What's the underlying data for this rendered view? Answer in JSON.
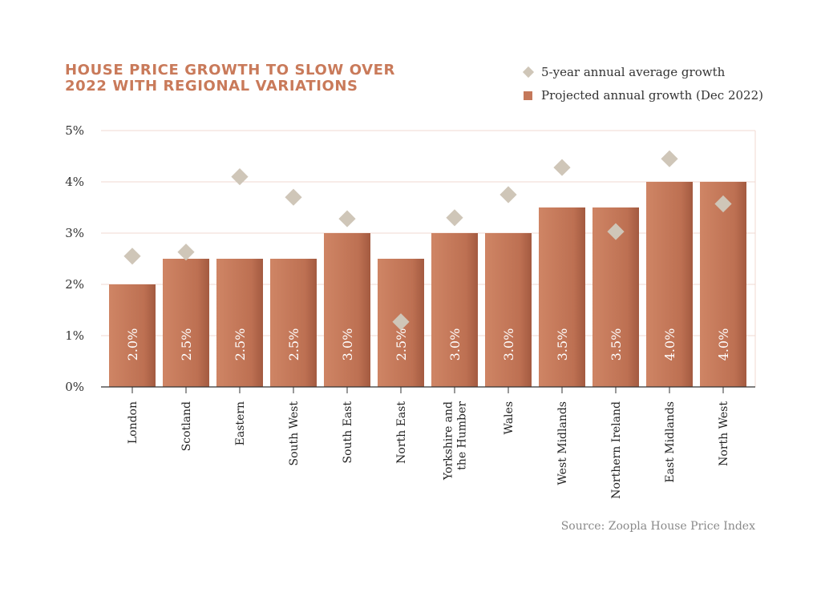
{
  "title_lines": [
    "HOUSE PRICE GROWTH TO SLOW OVER",
    "2022 WITH REGIONAL VARIATIONS"
  ],
  "legend": {
    "average_label": "5-year annual average growth",
    "projected_label": "Projected annual growth (Dec 2022)"
  },
  "source": "Source: Zoopla House Price Index",
  "colors": {
    "bar": "#c4785a",
    "bar_dark": "#a35a40",
    "diamond": "#cfc6b8",
    "title": "#c97a5a",
    "grid": "#f0d8d0"
  },
  "chart_data": {
    "type": "bar",
    "categories": [
      [
        "London"
      ],
      [
        "Scotland"
      ],
      [
        "Eastern"
      ],
      [
        "South West"
      ],
      [
        "South East"
      ],
      [
        "North East"
      ],
      [
        "Yorkshire and",
        "the Humber"
      ],
      [
        "Wales"
      ],
      [
        "West Midlands"
      ],
      [
        "Northern Ireland"
      ],
      [
        "East Midlands"
      ],
      [
        "North West"
      ]
    ],
    "series": [
      {
        "name": "Projected annual growth (Dec 2022)",
        "type": "bar",
        "values": [
          2.0,
          2.5,
          2.5,
          2.5,
          3.0,
          2.5,
          3.0,
          3.0,
          3.5,
          3.5,
          4.0,
          4.0
        ],
        "data_labels": [
          "2.0%",
          "2.5%",
          "2.5%",
          "2.5%",
          "3.0%",
          "2.5%",
          "3.0%",
          "3.0%",
          "3.5%",
          "3.5%",
          "4.0%",
          "4.0%"
        ]
      },
      {
        "name": "5-year annual average growth",
        "type": "scatter",
        "values": [
          2.55,
          2.63,
          4.1,
          3.7,
          3.28,
          1.27,
          3.3,
          3.75,
          4.28,
          3.03,
          4.45,
          3.57
        ]
      }
    ],
    "ylim": [
      0,
      5
    ],
    "yticks": [
      0,
      1,
      2,
      3,
      4,
      5
    ],
    "ytick_labels": [
      "0%",
      "1%",
      "2%",
      "3%",
      "4%",
      "5%"
    ],
    "grid": true,
    "legend_position": "top-right"
  }
}
